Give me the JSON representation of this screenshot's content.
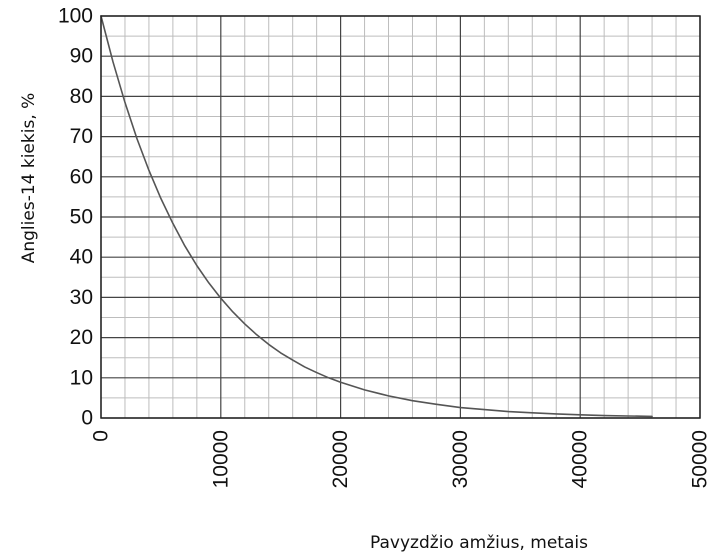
{
  "chart_data": {
    "type": "line",
    "title": "",
    "xlabel": "Pavyzdžio amžius, metais",
    "ylabel": "Anglies-14 kiekis, %",
    "xlim": [
      0,
      50000
    ],
    "ylim": [
      0,
      100
    ],
    "x_ticks": [
      0,
      10000,
      20000,
      30000,
      40000,
      50000
    ],
    "y_ticks": [
      0,
      10,
      20,
      30,
      40,
      50,
      60,
      70,
      80,
      90,
      100
    ],
    "x_tick_labels": [
      "0",
      "10000",
      "20000",
      "30000",
      "40000",
      "50000"
    ],
    "y_tick_labels": [
      "0",
      "10",
      "20",
      "30",
      "40",
      "50",
      "60",
      "70",
      "80",
      "90",
      "100"
    ],
    "minor_grid": {
      "x_step": 2000,
      "y_step": 5
    },
    "grid": true,
    "legend": "none",
    "line_color": "#555555",
    "grid_color": "#bdbdbd",
    "major_grid_color": "#444444",
    "series": [
      {
        "x": [
          0,
          1000,
          2000,
          3000,
          4000,
          5000,
          6000,
          7000,
          8000,
          9000,
          10000,
          11000,
          12000,
          13000,
          14000,
          15000,
          16000,
          17000,
          18000,
          19000,
          20000,
          22000,
          24000,
          26000,
          28000,
          30000,
          32000,
          34000,
          36000,
          38000,
          40000,
          42000,
          44000,
          46000
        ],
        "y": [
          100,
          88.6,
          78.5,
          69.5,
          61.6,
          54.6,
          48.4,
          42.8,
          37.9,
          33.6,
          29.8,
          26.4,
          23.4,
          20.7,
          18.3,
          16.2,
          14.4,
          12.7,
          11.3,
          10.0,
          8.9,
          7.0,
          5.5,
          4.3,
          3.4,
          2.6,
          2.1,
          1.6,
          1.3,
          1.0,
          0.8,
          0.6,
          0.5,
          0.4
        ]
      }
    ]
  }
}
